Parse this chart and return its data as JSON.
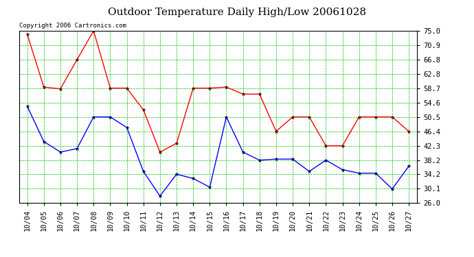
{
  "title": "Outdoor Temperature Daily High/Low 20061028",
  "copyright": "Copyright 2006 Cartronics.com",
  "x_labels": [
    "10/04",
    "10/05",
    "10/06",
    "10/07",
    "10/08",
    "10/09",
    "10/10",
    "10/11",
    "10/12",
    "10/13",
    "10/14",
    "10/15",
    "10/16",
    "10/17",
    "10/18",
    "10/19",
    "10/20",
    "10/21",
    "10/22",
    "10/23",
    "10/24",
    "10/25",
    "10/26",
    "10/27"
  ],
  "high_temps": [
    74.0,
    59.0,
    58.5,
    66.8,
    75.0,
    58.7,
    58.7,
    52.5,
    40.5,
    43.0,
    58.7,
    58.7,
    59.0,
    57.0,
    57.0,
    46.4,
    50.5,
    50.5,
    42.3,
    42.3,
    50.5,
    50.5,
    50.5,
    46.4
  ],
  "low_temps": [
    53.5,
    43.5,
    40.5,
    41.5,
    50.5,
    50.5,
    47.5,
    35.0,
    28.0,
    34.2,
    33.0,
    30.5,
    50.5,
    40.5,
    38.2,
    38.5,
    38.5,
    35.0,
    38.2,
    35.5,
    34.5,
    34.5,
    30.0,
    36.5
  ],
  "high_color": "#ff0000",
  "low_color": "#0000ff",
  "bg_color": "#ffffff",
  "plot_bg_color": "#ffffff",
  "grid_color": "#00bb00",
  "border_color": "#000000",
  "ylim_min": 26.0,
  "ylim_max": 75.0,
  "yticks": [
    26.0,
    30.1,
    34.2,
    38.2,
    42.3,
    46.4,
    50.5,
    54.6,
    58.7,
    62.8,
    66.8,
    70.9,
    75.0
  ],
  "title_fontsize": 11,
  "copyright_fontsize": 6.5,
  "tick_fontsize": 7.5
}
